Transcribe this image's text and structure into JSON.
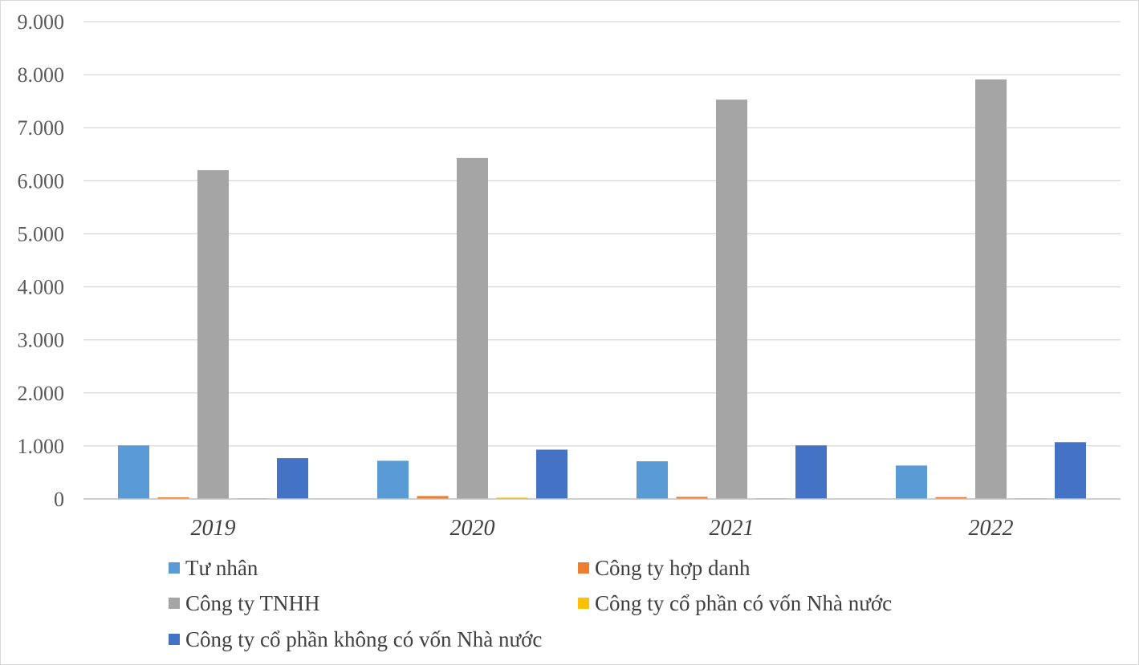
{
  "chart_data": {
    "type": "bar",
    "title": "",
    "xlabel": "",
    "ylabel": "",
    "categories": [
      "2019",
      "2020",
      "2021",
      "2022"
    ],
    "ylim": [
      0,
      9000
    ],
    "yticks": [
      0,
      1000,
      2000,
      3000,
      4000,
      5000,
      6000,
      7000,
      8000,
      9000
    ],
    "ytick_labels": [
      "0",
      "1.000",
      "2.000",
      "3.000",
      "4.000",
      "5.000",
      "6.000",
      "7.000",
      "8.000",
      "9.000"
    ],
    "grid": true,
    "legend_position": "bottom",
    "series": [
      {
        "name": "Tư nhân",
        "color": "#5B9BD5",
        "values": [
          1010,
          720,
          710,
          630
        ]
      },
      {
        "name": "Công ty hợp danh",
        "color": "#ED7D31",
        "values": [
          30,
          55,
          40,
          35
        ]
      },
      {
        "name": "Công ty TNHH",
        "color": "#A5A5A5",
        "values": [
          6200,
          6430,
          7530,
          7910
        ]
      },
      {
        "name": "Công ty cổ phần có vốn Nhà nước",
        "color": "#FFC000",
        "values": [
          5,
          25,
          5,
          5
        ]
      },
      {
        "name": "Công ty cổ phần không có vốn Nhà nước",
        "color": "#4472C4",
        "values": [
          770,
          930,
          1010,
          1070
        ]
      }
    ]
  }
}
